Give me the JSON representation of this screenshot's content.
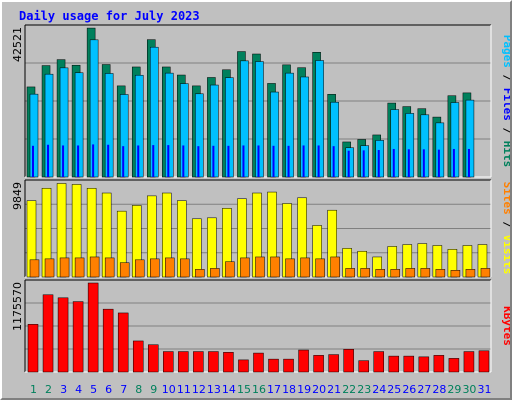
{
  "chart_data": {
    "type": "bar",
    "title": "Daily usage for July 2023",
    "categories": [
      "1",
      "2",
      "3",
      "4",
      "5",
      "6",
      "7",
      "8",
      "9",
      "10",
      "11",
      "12",
      "13",
      "14",
      "15",
      "16",
      "17",
      "18",
      "19",
      "20",
      "21",
      "22",
      "23",
      "24",
      "25",
      "26",
      "27",
      "28",
      "29",
      "30",
      "31"
    ],
    "weekend_days": [
      "1",
      "2",
      "8",
      "9",
      "15",
      "16",
      "22",
      "23",
      "29",
      "30"
    ],
    "colors": {
      "hits": "#00805c",
      "files": "#0000ff",
      "pages": "#00c0ff",
      "visits": "#ffff00",
      "sites": "#ff8000",
      "kbytes": "#ff0000",
      "weekend_label": "#00805c",
      "weekday_label": "#0000ff",
      "title": "#0000ff",
      "background": "#c0c0c0"
    },
    "panels": [
      {
        "id": "hits",
        "max_label": "42521",
        "ylim": [
          0,
          42521
        ],
        "legend": [
          {
            "text": "Pages",
            "color": "#00c0ff"
          },
          {
            "text": " / ",
            "color": "#000000"
          },
          {
            "text": "Files",
            "color": "#0000ff"
          },
          {
            "text": " / ",
            "color": "#000000"
          },
          {
            "text": "Hits",
            "color": "#00805c"
          }
        ],
        "series": [
          {
            "name": "Hits",
            "color": "#00805c",
            "values": [
              25700,
              31800,
              33500,
              31900,
              42500,
              32100,
              26000,
              31400,
              39200,
              31400,
              29100,
              26000,
              28400,
              30600,
              35800,
              35100,
              26700,
              32000,
              31200,
              35600,
              23600,
              10000,
              10700,
              12000,
              21100,
              20100,
              19500,
              17100,
              23200,
              24000,
              0
            ]
          },
          {
            "name": "Files",
            "color": "#0000ff",
            "values": [
              8900,
              9200,
              9000,
              9000,
              9300,
              9200,
              8800,
              9000,
              9100,
              9100,
              9000,
              8800,
              8900,
              8900,
              9000,
              9000,
              8900,
              8900,
              9000,
              9000,
              8800,
              7500,
              7600,
              7700,
              8000,
              7900,
              7900,
              7800,
              8000,
              8000,
              0
            ]
          },
          {
            "name": "Pages",
            "color": "#00c0ff",
            "values": [
              24500,
              30200,
              32000,
              30600,
              40000,
              30400,
              24400,
              29900,
              37900,
              30500,
              27500,
              24600,
              27100,
              29200,
              34000,
              33800,
              25100,
              30500,
              29400,
              34100,
              22200,
              9200,
              9800,
              11300,
              20100,
              19000,
              18600,
              16300,
              22100,
              22800,
              0
            ]
          }
        ]
      },
      {
        "id": "visits",
        "max_label": "9849",
        "ylim": [
          0,
          9849
        ],
        "legend": [
          {
            "text": "Sites",
            "color": "#ff8000"
          },
          {
            "text": " / ",
            "color": "#000000"
          },
          {
            "text": "Visits",
            "color": "#ffff00"
          }
        ],
        "series": [
          {
            "name": "Visits",
            "color": "#ffff00",
            "values": [
              8000,
              9300,
              9800,
              9700,
              9300,
              8800,
              6900,
              7500,
              8500,
              8800,
              8000,
              6100,
              6200,
              7200,
              8200,
              8800,
              8900,
              7700,
              8300,
              5400,
              7000,
              3000,
              2700,
              2100,
              3200,
              3400,
              3500,
              3300,
              2900,
              3300,
              3400
            ]
          },
          {
            "name": "Sites",
            "color": "#ff8000",
            "values": [
              1800,
              1900,
              2000,
              2000,
              2100,
              2000,
              1500,
              1800,
              1900,
              2000,
              1900,
              800,
              900,
              1600,
              2000,
              2100,
              2100,
              1900,
              2000,
              1900,
              2100,
              900,
              900,
              800,
              800,
              900,
              900,
              800,
              700,
              800,
              900
            ]
          }
        ]
      },
      {
        "id": "kbytes",
        "max_label": "1175570",
        "ylim": [
          0,
          1175570
        ],
        "legend": [
          {
            "text": "KBytes",
            "color": "#ff0000"
          }
        ],
        "series": [
          {
            "name": "KBytes",
            "color": "#ff0000",
            "values": [
              630000,
              1020000,
              980000,
              930000,
              1175570,
              830000,
              780000,
              410000,
              360000,
              270000,
              270000,
              270000,
              270000,
              260000,
              160000,
              250000,
              170000,
              170000,
              290000,
              220000,
              230000,
              300000,
              150000,
              270000,
              210000,
              210000,
              200000,
              220000,
              180000,
              270000,
              280000
            ]
          }
        ]
      }
    ]
  }
}
